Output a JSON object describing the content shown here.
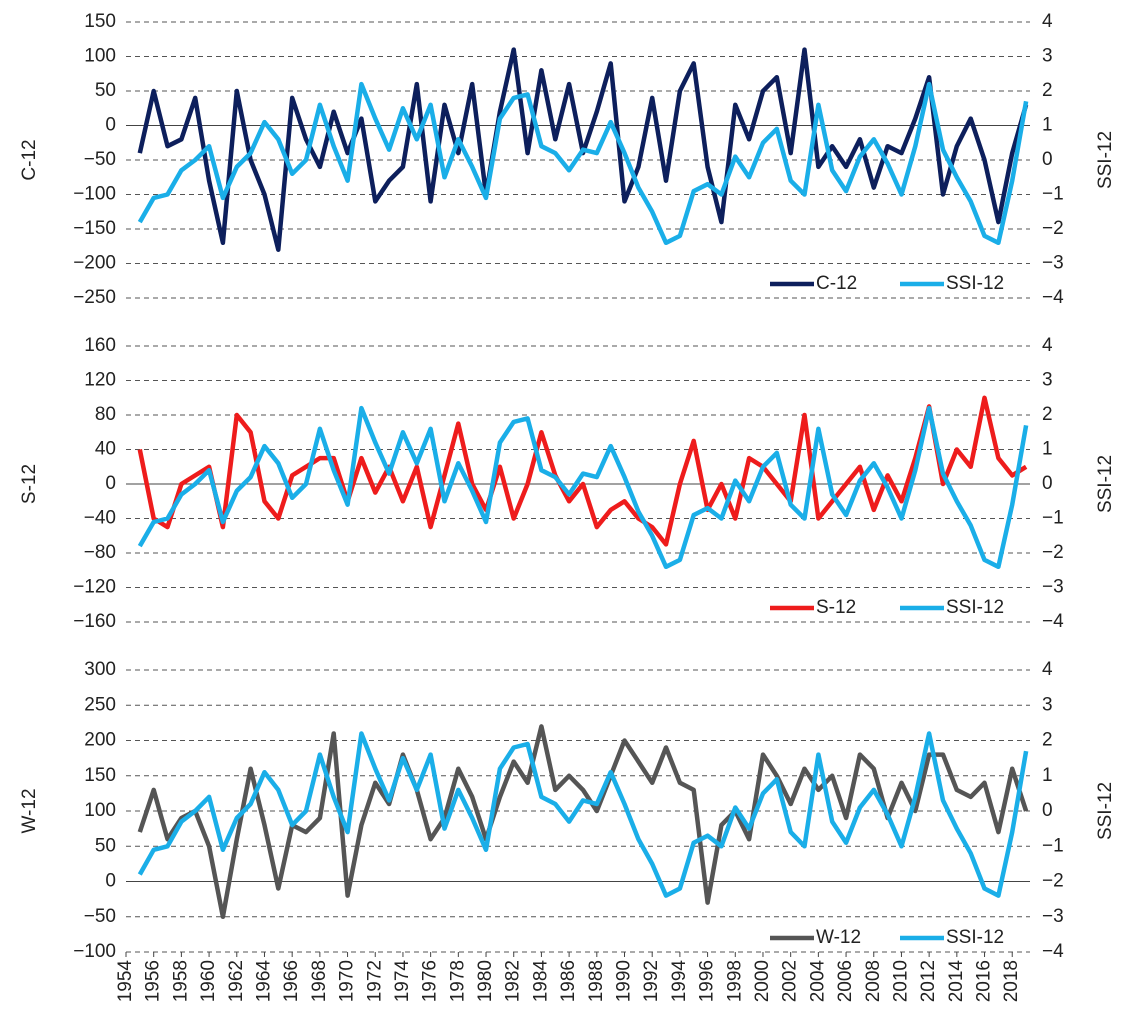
{
  "chart_data": [
    {
      "type": "line",
      "y_label": "C-12",
      "y2_label": "SSI-12",
      "legend": "lower right",
      "grid": true,
      "x": [
        1955,
        1956,
        1957,
        1958,
        1959,
        1960,
        1961,
        1962,
        1963,
        1964,
        1965,
        1966,
        1967,
        1968,
        1969,
        1970,
        1971,
        1972,
        1973,
        1974,
        1975,
        1976,
        1977,
        1978,
        1979,
        1980,
        1981,
        1982,
        1983,
        1984,
        1985,
        1986,
        1987,
        1988,
        1989,
        1990,
        1991,
        1992,
        1993,
        1994,
        1995,
        1996,
        1997,
        1998,
        1999,
        2000,
        2001,
        2002,
        2003,
        2004,
        2005,
        2006,
        2007,
        2008,
        2009,
        2010,
        2011,
        2012,
        2013,
        2014,
        2015,
        2016,
        2017,
        2018,
        2019
      ],
      "xlim": [
        1954,
        2019.5
      ],
      "ylim": [
        -250,
        150
      ],
      "yticks": [
        {
          "value": -250,
          "label": "−250"
        },
        {
          "value": -200,
          "label": "−200"
        },
        {
          "value": -150,
          "label": "−150"
        },
        {
          "value": -100,
          "label": "−100"
        },
        {
          "value": -50,
          "label": "−50"
        },
        0,
        50,
        100,
        150
      ],
      "y2lim": [
        -4,
        4
      ],
      "y2ticks": [
        {
          "value": -4,
          "label": "−4"
        },
        {
          "value": -3,
          "label": "−3"
        },
        {
          "value": -2,
          "label": "−2"
        },
        {
          "value": -1,
          "label": "−1"
        },
        0,
        1,
        2,
        3,
        4
      ],
      "series": [
        {
          "name": "C-12",
          "color": "#0d1f5c",
          "values": [
            -40,
            50,
            -30,
            -20,
            40,
            -80,
            -170,
            50,
            -50,
            -100,
            -180,
            40,
            -20,
            -60,
            20,
            -40,
            10,
            -110,
            -80,
            -60,
            60,
            -110,
            30,
            -40,
            60,
            -100,
            20,
            110,
            -40,
            80,
            -20,
            60,
            -40,
            20,
            90,
            -110,
            -60,
            40,
            -80,
            50,
            90,
            -60,
            -140,
            30,
            -20,
            50,
            70,
            -40,
            110,
            -60,
            -30,
            -60,
            -20,
            -90,
            -30,
            -40,
            10,
            70,
            -100,
            -30,
            10,
            -50,
            -140,
            -40,
            30
          ]
        },
        {
          "name": "SSI-12",
          "color": "#1aaee8",
          "axis": "y2",
          "values": [
            -1.8,
            -1.1,
            -1.0,
            -0.3,
            0.0,
            0.4,
            -1.1,
            -0.2,
            0.2,
            1.1,
            0.6,
            -0.4,
            0.0,
            1.6,
            0.4,
            -0.6,
            2.2,
            1.2,
            0.3,
            1.5,
            0.6,
            1.6,
            -0.5,
            0.6,
            -0.2,
            -1.1,
            1.2,
            1.8,
            1.9,
            0.4,
            0.2,
            -0.3,
            0.3,
            0.2,
            1.1,
            0.2,
            -0.8,
            -1.5,
            -2.4,
            -2.2,
            -0.9,
            -0.7,
            -1.0,
            0.1,
            -0.5,
            0.5,
            0.9,
            -0.6,
            -1.0,
            1.6,
            -0.3,
            -0.9,
            0.1,
            0.6,
            -0.1,
            -1.0,
            0.4,
            2.2,
            0.3,
            -0.5,
            -1.2,
            -2.2,
            -2.4,
            -0.6,
            1.7
          ]
        }
      ]
    },
    {
      "type": "line",
      "y_label": "S-12",
      "y2_label": "SSI-12",
      "legend": "lower right",
      "grid": true,
      "x": [
        1955,
        1956,
        1957,
        1958,
        1959,
        1960,
        1961,
        1962,
        1963,
        1964,
        1965,
        1966,
        1967,
        1968,
        1969,
        1970,
        1971,
        1972,
        1973,
        1974,
        1975,
        1976,
        1977,
        1978,
        1979,
        1980,
        1981,
        1982,
        1983,
        1984,
        1985,
        1986,
        1987,
        1988,
        1989,
        1990,
        1991,
        1992,
        1993,
        1994,
        1995,
        1996,
        1997,
        1998,
        1999,
        2000,
        2001,
        2002,
        2003,
        2004,
        2005,
        2006,
        2007,
        2008,
        2009,
        2010,
        2011,
        2012,
        2013,
        2014,
        2015,
        2016,
        2017,
        2018,
        2019
      ],
      "xlim": [
        1954,
        2019.5
      ],
      "ylim": [
        -160,
        160
      ],
      "yticks": [
        {
          "value": -160,
          "label": "−160"
        },
        {
          "value": -120,
          "label": "−120"
        },
        {
          "value": -80,
          "label": "−80"
        },
        {
          "value": -40,
          "label": "−40"
        },
        0,
        40,
        80,
        120,
        160
      ],
      "y2lim": [
        -4,
        4
      ],
      "y2ticks": [
        {
          "value": -4,
          "label": "−4"
        },
        {
          "value": -3,
          "label": "−3"
        },
        {
          "value": -2,
          "label": "−2"
        },
        {
          "value": -1,
          "label": "−1"
        },
        0,
        1,
        2,
        3,
        4
      ],
      "series": [
        {
          "name": "S-12",
          "color": "#ee1c1c",
          "values": [
            40,
            -40,
            -50,
            0,
            10,
            20,
            -50,
            80,
            60,
            -20,
            -40,
            10,
            20,
            30,
            30,
            -20,
            30,
            -10,
            20,
            -20,
            20,
            -50,
            10,
            70,
            0,
            -30,
            20,
            -40,
            0,
            60,
            10,
            -20,
            0,
            -50,
            -30,
            -20,
            -40,
            -50,
            -70,
            0,
            50,
            -30,
            0,
            -40,
            30,
            20,
            0,
            -20,
            80,
            -40,
            -20,
            0,
            20,
            -30,
            10,
            -20,
            30,
            90,
            0,
            40,
            20,
            100,
            30,
            10,
            20
          ]
        },
        {
          "name": "SSI-12",
          "color": "#1aaee8",
          "axis": "y2",
          "values": [
            -1.8,
            -1.1,
            -1.0,
            -0.3,
            0.0,
            0.4,
            -1.1,
            -0.2,
            0.2,
            1.1,
            0.6,
            -0.4,
            0.0,
            1.6,
            0.4,
            -0.6,
            2.2,
            1.2,
            0.3,
            1.5,
            0.6,
            1.6,
            -0.5,
            0.6,
            -0.2,
            -1.1,
            1.2,
            1.8,
            1.9,
            0.4,
            0.2,
            -0.3,
            0.3,
            0.2,
            1.1,
            0.2,
            -0.8,
            -1.5,
            -2.4,
            -2.2,
            -0.9,
            -0.7,
            -1.0,
            0.1,
            -0.5,
            0.5,
            0.9,
            -0.6,
            -1.0,
            1.6,
            -0.3,
            -0.9,
            0.1,
            0.6,
            -0.1,
            -1.0,
            0.4,
            2.2,
            0.3,
            -0.5,
            -1.2,
            -2.2,
            -2.4,
            -0.6,
            1.7
          ]
        }
      ]
    },
    {
      "type": "line",
      "y_label": "W-12",
      "y2_label": "SSI-12",
      "legend": "lower right",
      "grid": true,
      "x": [
        1955,
        1956,
        1957,
        1958,
        1959,
        1960,
        1961,
        1962,
        1963,
        1964,
        1965,
        1966,
        1967,
        1968,
        1969,
        1970,
        1971,
        1972,
        1973,
        1974,
        1975,
        1976,
        1977,
        1978,
        1979,
        1980,
        1981,
        1982,
        1983,
        1984,
        1985,
        1986,
        1987,
        1988,
        1989,
        1990,
        1991,
        1992,
        1993,
        1994,
        1995,
        1996,
        1997,
        1998,
        1999,
        2000,
        2001,
        2002,
        2003,
        2004,
        2005,
        2006,
        2007,
        2008,
        2009,
        2010,
        2011,
        2012,
        2013,
        2014,
        2015,
        2016,
        2017,
        2018,
        2019
      ],
      "xlim": [
        1954,
        2019.5
      ],
      "xticks": [
        1954,
        1956,
        1958,
        1960,
        1962,
        1964,
        1966,
        1968,
        1970,
        1972,
        1974,
        1976,
        1978,
        1980,
        1982,
        1984,
        1986,
        1988,
        1990,
        1992,
        1994,
        1996,
        1998,
        2000,
        2002,
        2004,
        2006,
        2008,
        2010,
        2012,
        2014,
        2016,
        2018
      ],
      "ylim": [
        -100,
        300
      ],
      "yticks": [
        {
          "value": -100,
          "label": "−100"
        },
        {
          "value": -50,
          "label": "−50"
        },
        0,
        50,
        100,
        150,
        200,
        250,
        300
      ],
      "y2lim": [
        -4,
        4
      ],
      "y2ticks": [
        {
          "value": -4,
          "label": "−4"
        },
        {
          "value": -3,
          "label": "−3"
        },
        {
          "value": -2,
          "label": "−2"
        },
        {
          "value": -1,
          "label": "−1"
        },
        0,
        1,
        2,
        3,
        4
      ],
      "series": [
        {
          "name": "W-12",
          "color": "#555555",
          "values": [
            70,
            130,
            60,
            90,
            100,
            50,
            -50,
            60,
            160,
            80,
            -10,
            80,
            70,
            90,
            210,
            -20,
            80,
            140,
            110,
            180,
            130,
            60,
            90,
            160,
            120,
            60,
            120,
            170,
            140,
            220,
            130,
            150,
            130,
            100,
            150,
            200,
            170,
            140,
            190,
            140,
            130,
            -30,
            80,
            100,
            60,
            180,
            150,
            110,
            160,
            130,
            150,
            90,
            180,
            160,
            90,
            140,
            100,
            180,
            180,
            130,
            120,
            140,
            70,
            160,
            100
          ]
        },
        {
          "name": "SSI-12",
          "color": "#1aaee8",
          "axis": "y2",
          "values": [
            -1.8,
            -1.1,
            -1.0,
            -0.3,
            0.0,
            0.4,
            -1.1,
            -0.2,
            0.2,
            1.1,
            0.6,
            -0.4,
            0.0,
            1.6,
            0.4,
            -0.6,
            2.2,
            1.2,
            0.3,
            1.5,
            0.6,
            1.6,
            -0.5,
            0.6,
            -0.2,
            -1.1,
            1.2,
            1.8,
            1.9,
            0.4,
            0.2,
            -0.3,
            0.3,
            0.2,
            1.1,
            0.2,
            -0.8,
            -1.5,
            -2.4,
            -2.2,
            -0.9,
            -0.7,
            -1.0,
            0.1,
            -0.5,
            0.5,
            0.9,
            -0.6,
            -1.0,
            1.6,
            -0.3,
            -0.9,
            0.1,
            0.6,
            -0.1,
            -1.0,
            0.4,
            2.2,
            0.3,
            -0.5,
            -1.2,
            -2.2,
            -2.4,
            -0.6,
            1.7
          ]
        }
      ]
    }
  ]
}
